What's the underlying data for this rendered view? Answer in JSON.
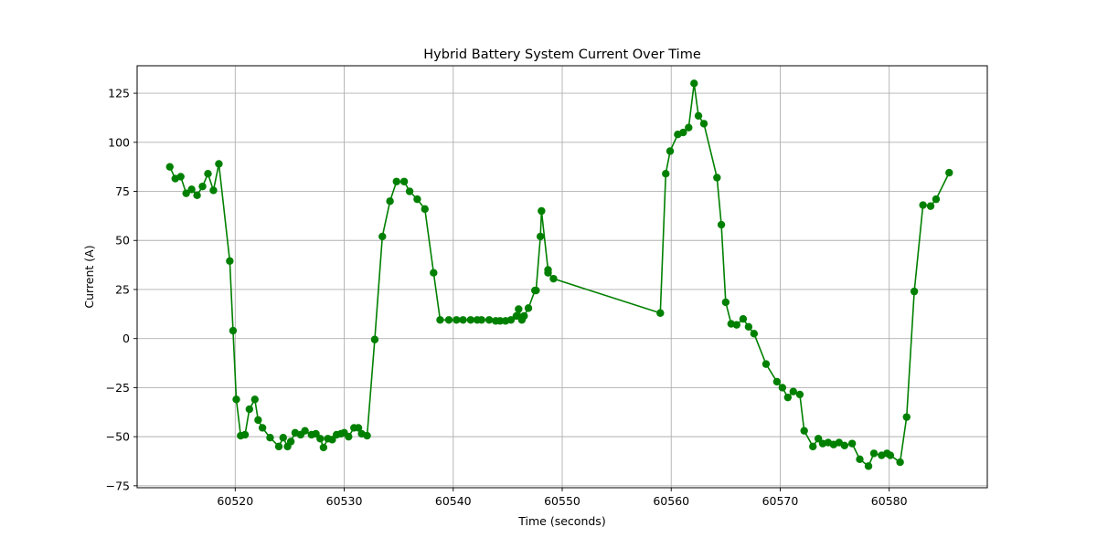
{
  "chart_data": {
    "type": "line",
    "title": "Hybrid Battery System Current Over Time",
    "xlabel": "Time (seconds)",
    "ylabel": "Current (A)",
    "xlim": [
      60511,
      60589
    ],
    "ylim": [
      -76,
      139
    ],
    "xticks": [
      60520,
      60530,
      60540,
      60550,
      60560,
      60570,
      60580
    ],
    "yticks": [
      -75,
      -50,
      -25,
      0,
      25,
      50,
      75,
      100,
      125
    ],
    "grid": true,
    "legend": "none",
    "series": [
      {
        "color": "#008000",
        "marker": "circle",
        "points": [
          [
            60514.0,
            87.5
          ],
          [
            60514.5,
            81.5
          ],
          [
            60515.0,
            82.5
          ],
          [
            60515.5,
            74.0
          ],
          [
            60516.0,
            76.0
          ],
          [
            60516.5,
            73.0
          ],
          [
            60517.0,
            77.5
          ],
          [
            60517.5,
            84.0
          ],
          [
            60518.0,
            75.5
          ],
          [
            60518.5,
            89.0
          ],
          [
            60519.5,
            39.5
          ],
          [
            60519.8,
            4.0
          ],
          [
            60520.1,
            -31.0
          ],
          [
            60520.5,
            -49.5
          ],
          [
            60520.9,
            -49.0
          ],
          [
            60521.3,
            -36.0
          ],
          [
            60521.8,
            -31.0
          ],
          [
            60522.1,
            -41.5
          ],
          [
            60522.5,
            -45.5
          ],
          [
            60523.2,
            -50.5
          ],
          [
            60524.0,
            -55.0
          ],
          [
            60524.4,
            -50.5
          ],
          [
            60524.8,
            -55.0
          ],
          [
            60525.1,
            -52.5
          ],
          [
            60525.5,
            -48.0
          ],
          [
            60526.0,
            -49.0
          ],
          [
            60526.4,
            -47.0
          ],
          [
            60527.0,
            -49.0
          ],
          [
            60527.4,
            -48.5
          ],
          [
            60527.8,
            -51.0
          ],
          [
            60528.1,
            -55.5
          ],
          [
            60528.5,
            -51.0
          ],
          [
            60528.9,
            -51.5
          ],
          [
            60529.3,
            -49.0
          ],
          [
            60529.7,
            -48.5
          ],
          [
            60530.0,
            -48.0
          ],
          [
            60530.4,
            -50.0
          ],
          [
            60530.9,
            -45.5
          ],
          [
            60531.3,
            -45.5
          ],
          [
            60531.6,
            -48.5
          ],
          [
            60532.1,
            -49.5
          ],
          [
            60532.8,
            -0.5
          ],
          [
            60533.5,
            52.0
          ],
          [
            60534.2,
            70.0
          ],
          [
            60534.8,
            80.0
          ],
          [
            60535.5,
            80.0
          ],
          [
            60536.0,
            75.0
          ],
          [
            60536.7,
            71.0
          ],
          [
            60537.4,
            66.0
          ],
          [
            60538.2,
            33.5
          ],
          [
            60538.8,
            9.5
          ],
          [
            60539.6,
            9.5
          ],
          [
            60540.3,
            9.5
          ],
          [
            60540.9,
            9.5
          ],
          [
            60541.6,
            9.5
          ],
          [
            60542.2,
            9.5
          ],
          [
            60542.6,
            9.5
          ],
          [
            60543.3,
            9.5
          ],
          [
            60543.9,
            9.0
          ],
          [
            60544.3,
            9.0
          ],
          [
            60544.8,
            9.0
          ],
          [
            60545.3,
            9.5
          ],
          [
            60545.8,
            11.5
          ],
          [
            60546.0,
            15.0
          ],
          [
            60546.3,
            9.5
          ],
          [
            60546.5,
            11.5
          ],
          [
            60546.9,
            15.5
          ],
          [
            60547.5,
            24.5
          ],
          [
            60547.6,
            24.5
          ],
          [
            60548.0,
            52.0
          ],
          [
            60548.1,
            65.0
          ],
          [
            60548.7,
            35.0
          ],
          [
            60548.7,
            33.5
          ],
          [
            60549.2,
            30.5
          ],
          [
            60559.0,
            13.0
          ],
          [
            60559.5,
            84.0
          ],
          [
            60559.9,
            95.5
          ],
          [
            60560.6,
            104.0
          ],
          [
            60561.1,
            105.0
          ],
          [
            60561.6,
            107.5
          ],
          [
            60562.1,
            130.0
          ],
          [
            60562.5,
            113.5
          ],
          [
            60563.0,
            109.5
          ],
          [
            60564.2,
            82.0
          ],
          [
            60564.6,
            58.0
          ],
          [
            60565.0,
            18.5
          ],
          [
            60565.5,
            7.5
          ],
          [
            60566.0,
            7.0
          ],
          [
            60566.6,
            10.0
          ],
          [
            60567.1,
            6.0
          ],
          [
            60567.6,
            2.5
          ],
          [
            60568.7,
            -13.0
          ],
          [
            60569.7,
            -22.0
          ],
          [
            60570.2,
            -25.0
          ],
          [
            60570.7,
            -30.0
          ],
          [
            60571.2,
            -27.0
          ],
          [
            60571.8,
            -28.5
          ],
          [
            60572.2,
            -47.0
          ],
          [
            60573.0,
            -55.0
          ],
          [
            60573.5,
            -51.0
          ],
          [
            60573.9,
            -53.5
          ],
          [
            60574.4,
            -53.0
          ],
          [
            60574.9,
            -54.0
          ],
          [
            60575.4,
            -53.0
          ],
          [
            60575.9,
            -54.5
          ],
          [
            60576.6,
            -53.5
          ],
          [
            60577.3,
            -61.5
          ],
          [
            60578.1,
            -65.0
          ],
          [
            60578.6,
            -58.5
          ],
          [
            60579.3,
            -59.5
          ],
          [
            60579.8,
            -58.5
          ],
          [
            60580.1,
            -59.5
          ],
          [
            60581.0,
            -63.0
          ],
          [
            60581.6,
            -40.0
          ],
          [
            60582.3,
            24.0
          ],
          [
            60583.1,
            68.0
          ],
          [
            60583.8,
            67.5
          ],
          [
            60584.3,
            71.0
          ],
          [
            60585.5,
            84.5
          ]
        ]
      }
    ]
  }
}
